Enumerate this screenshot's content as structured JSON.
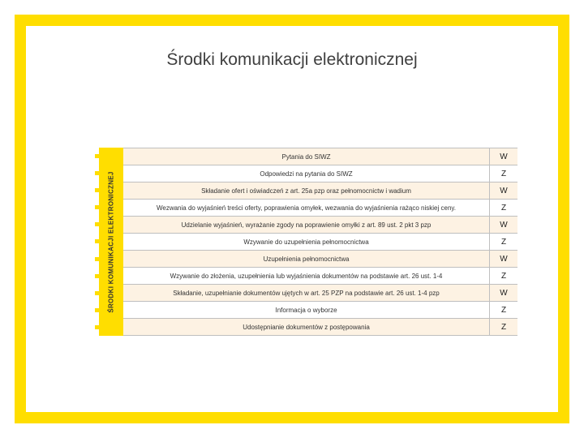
{
  "title": "Środki komunikacji elektronicznej",
  "sidebar_label": "ŚRODKI KOMUNIKACJI ELEKTRONICZNEJ",
  "colors": {
    "frame": "#ffde00",
    "alt_row": "#fdf2e3",
    "border": "#bfbfbf",
    "text": "#333333"
  },
  "rows": [
    {
      "text": "Pytania do SIWZ",
      "mark": "W",
      "alt": true
    },
    {
      "text": "Odpowiedzi na pytania do SIWZ",
      "mark": "Z",
      "alt": false
    },
    {
      "text": "Składanie ofert i oświadczeń z art. 25a pzp oraz pełnomocnictw i wadium",
      "mark": "W",
      "alt": true
    },
    {
      "text": "Wezwania do wyjaśnień treści oferty, poprawienia omyłek, wezwania do wyjaśnienia rażąco niskiej ceny.",
      "mark": "Z",
      "alt": false
    },
    {
      "text": "Udzielanie wyjaśnień, wyrażanie zgody na poprawienie omyłki z art. 89 ust. 2 pkt 3 pzp",
      "mark": "W",
      "alt": true
    },
    {
      "text": "Wzywanie do uzupełnienia pełnomocnictwa",
      "mark": "Z",
      "alt": false
    },
    {
      "text": "Uzupełnienia pełnomocnictwa",
      "mark": "W",
      "alt": true
    },
    {
      "text": "Wzywanie do złożenia, uzupełnienia lub wyjaśnienia dokumentów na podstawie art. 26 ust. 1-4",
      "mark": "Z",
      "alt": false
    },
    {
      "text": "Składanie, uzupełnianie dokumentów ujętych w art. 25 PZP na podstawie art. 26 ust. 1-4 pzp",
      "mark": "W",
      "alt": true
    },
    {
      "text": "Informacja o wyborze",
      "mark": "Z",
      "alt": false
    },
    {
      "text": "Udostępnianie dokumentów z postępowania",
      "mark": "Z",
      "alt": true
    }
  ]
}
